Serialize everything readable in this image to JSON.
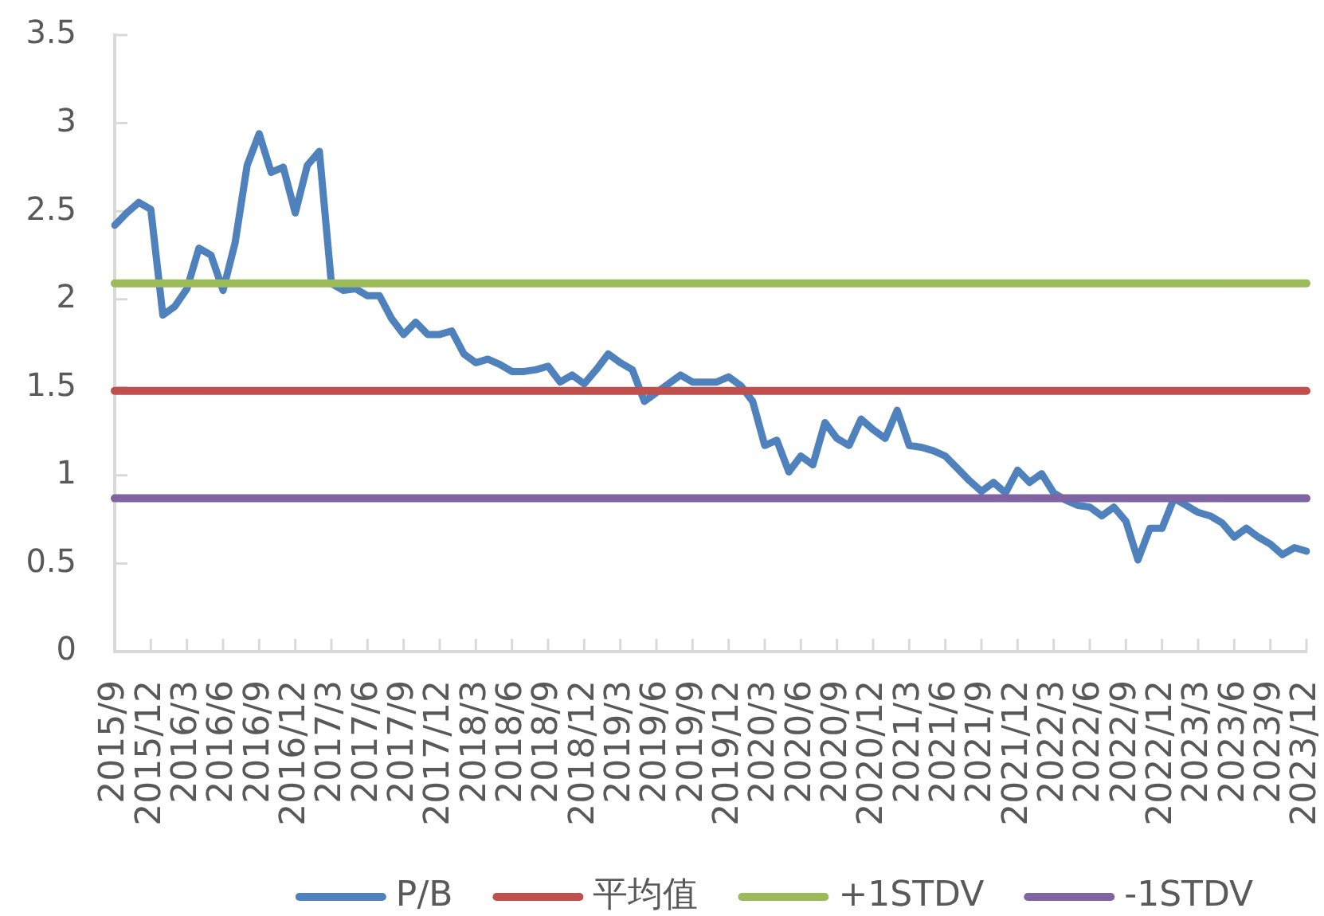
{
  "chart_data": {
    "type": "line",
    "categories": [
      "2015/9",
      null,
      null,
      "2015/12",
      null,
      null,
      "2016/3",
      null,
      null,
      "2016/6",
      null,
      null,
      "2016/9",
      null,
      null,
      "2016/12",
      null,
      null,
      "2017/3",
      null,
      null,
      "2017/6",
      null,
      null,
      "2017/9",
      null,
      null,
      "2017/12",
      null,
      null,
      "2018/3",
      null,
      null,
      "2018/6",
      null,
      null,
      "2018/9",
      null,
      null,
      "2018/12",
      null,
      null,
      "2019/3",
      null,
      null,
      "2019/6",
      null,
      null,
      "2019/9",
      null,
      null,
      "2019/12",
      null,
      null,
      "2020/3",
      null,
      null,
      "2020/6",
      null,
      null,
      "2020/9",
      null,
      null,
      "2020/12",
      null,
      null,
      "2021/3",
      null,
      null,
      "2021/6",
      null,
      null,
      "2021/9",
      null,
      null,
      "2021/12",
      null,
      null,
      "2022/3",
      null,
      null,
      "2022/6",
      null,
      null,
      "2022/9",
      null,
      null,
      "2022/12",
      null,
      null,
      "2023/3",
      null,
      null,
      "2023/6",
      null,
      null,
      "2023/9",
      null,
      null,
      "2023/12"
    ],
    "series": [
      {
        "name": "P/B",
        "color": "#4f81bd",
        "values": [
          2.42,
          2.49,
          2.55,
          2.51,
          1.91,
          1.96,
          2.06,
          2.29,
          2.25,
          2.05,
          2.32,
          2.76,
          2.94,
          2.72,
          2.75,
          2.49,
          2.76,
          2.84,
          2.09,
          2.05,
          2.06,
          2.02,
          2.02,
          1.89,
          1.8,
          1.87,
          1.8,
          1.8,
          1.82,
          1.69,
          1.64,
          1.66,
          1.63,
          1.59,
          1.59,
          1.6,
          1.62,
          1.53,
          1.57,
          1.52,
          1.6,
          1.69,
          1.64,
          1.6,
          1.42,
          1.47,
          1.52,
          1.57,
          1.53,
          1.53,
          1.53,
          1.56,
          1.51,
          1.42,
          1.17,
          1.2,
          1.02,
          1.11,
          1.06,
          1.3,
          1.21,
          1.17,
          1.32,
          1.26,
          1.21,
          1.37,
          1.17,
          1.16,
          1.14,
          1.11,
          1.04,
          0.97,
          0.91,
          0.96,
          0.9,
          1.03,
          0.96,
          1.01,
          0.9,
          0.86,
          0.83,
          0.82,
          0.77,
          0.82,
          0.74,
          0.52,
          0.7,
          0.7,
          0.87,
          0.83,
          0.79,
          0.77,
          0.73,
          0.65,
          0.7,
          0.65,
          0.61,
          0.55,
          0.59,
          0.57
        ]
      },
      {
        "name": "平均值",
        "color": "#c0504d",
        "values": [
          1.48,
          1.48,
          1.48,
          1.48,
          1.48,
          1.48,
          1.48,
          1.48,
          1.48,
          1.48,
          1.48,
          1.48,
          1.48,
          1.48,
          1.48,
          1.48,
          1.48,
          1.48,
          1.48,
          1.48,
          1.48,
          1.48,
          1.48,
          1.48,
          1.48,
          1.48,
          1.48,
          1.48,
          1.48,
          1.48,
          1.48,
          1.48,
          1.48,
          1.48,
          1.48,
          1.48,
          1.48,
          1.48,
          1.48,
          1.48,
          1.48,
          1.48,
          1.48,
          1.48,
          1.48,
          1.48,
          1.48,
          1.48,
          1.48,
          1.48,
          1.48,
          1.48,
          1.48,
          1.48,
          1.48,
          1.48,
          1.48,
          1.48,
          1.48,
          1.48,
          1.48,
          1.48,
          1.48,
          1.48,
          1.48,
          1.48,
          1.48,
          1.48,
          1.48,
          1.48,
          1.48,
          1.48,
          1.48,
          1.48,
          1.48,
          1.48,
          1.48,
          1.48,
          1.48,
          1.48,
          1.48,
          1.48,
          1.48,
          1.48,
          1.48,
          1.48,
          1.48,
          1.48,
          1.48,
          1.48,
          1.48,
          1.48,
          1.48,
          1.48,
          1.48,
          1.48,
          1.48,
          1.48,
          1.48,
          1.48
        ]
      },
      {
        "name": "+1STDV",
        "color": "#9bbb59",
        "values": [
          2.09,
          2.09,
          2.09,
          2.09,
          2.09,
          2.09,
          2.09,
          2.09,
          2.09,
          2.09,
          2.09,
          2.09,
          2.09,
          2.09,
          2.09,
          2.09,
          2.09,
          2.09,
          2.09,
          2.09,
          2.09,
          2.09,
          2.09,
          2.09,
          2.09,
          2.09,
          2.09,
          2.09,
          2.09,
          2.09,
          2.09,
          2.09,
          2.09,
          2.09,
          2.09,
          2.09,
          2.09,
          2.09,
          2.09,
          2.09,
          2.09,
          2.09,
          2.09,
          2.09,
          2.09,
          2.09,
          2.09,
          2.09,
          2.09,
          2.09,
          2.09,
          2.09,
          2.09,
          2.09,
          2.09,
          2.09,
          2.09,
          2.09,
          2.09,
          2.09,
          2.09,
          2.09,
          2.09,
          2.09,
          2.09,
          2.09,
          2.09,
          2.09,
          2.09,
          2.09,
          2.09,
          2.09,
          2.09,
          2.09,
          2.09,
          2.09,
          2.09,
          2.09,
          2.09,
          2.09,
          2.09,
          2.09,
          2.09,
          2.09,
          2.09,
          2.09,
          2.09,
          2.09,
          2.09,
          2.09,
          2.09,
          2.09,
          2.09,
          2.09,
          2.09,
          2.09,
          2.09,
          2.09,
          2.09,
          2.09
        ]
      },
      {
        "name": "-1STDV",
        "color": "#8064a2",
        "values": [
          0.87,
          0.87,
          0.87,
          0.87,
          0.87,
          0.87,
          0.87,
          0.87,
          0.87,
          0.87,
          0.87,
          0.87,
          0.87,
          0.87,
          0.87,
          0.87,
          0.87,
          0.87,
          0.87,
          0.87,
          0.87,
          0.87,
          0.87,
          0.87,
          0.87,
          0.87,
          0.87,
          0.87,
          0.87,
          0.87,
          0.87,
          0.87,
          0.87,
          0.87,
          0.87,
          0.87,
          0.87,
          0.87,
          0.87,
          0.87,
          0.87,
          0.87,
          0.87,
          0.87,
          0.87,
          0.87,
          0.87,
          0.87,
          0.87,
          0.87,
          0.87,
          0.87,
          0.87,
          0.87,
          0.87,
          0.87,
          0.87,
          0.87,
          0.87,
          0.87,
          0.87,
          0.87,
          0.87,
          0.87,
          0.87,
          0.87,
          0.87,
          0.87,
          0.87,
          0.87,
          0.87,
          0.87,
          0.87,
          0.87,
          0.87,
          0.87,
          0.87,
          0.87,
          0.87,
          0.87,
          0.87,
          0.87,
          0.87,
          0.87,
          0.87,
          0.87,
          0.87,
          0.87,
          0.87,
          0.87,
          0.87,
          0.87,
          0.87,
          0.87,
          0.87,
          0.87,
          0.87,
          0.87,
          0.87,
          0.87
        ]
      }
    ],
    "ylim": [
      0,
      3.5
    ],
    "yticks": [
      0,
      0.5,
      1,
      1.5,
      2,
      2.5,
      3,
      3.5
    ],
    "grid": false,
    "legend": "bottom",
    "marker": "none"
  }
}
